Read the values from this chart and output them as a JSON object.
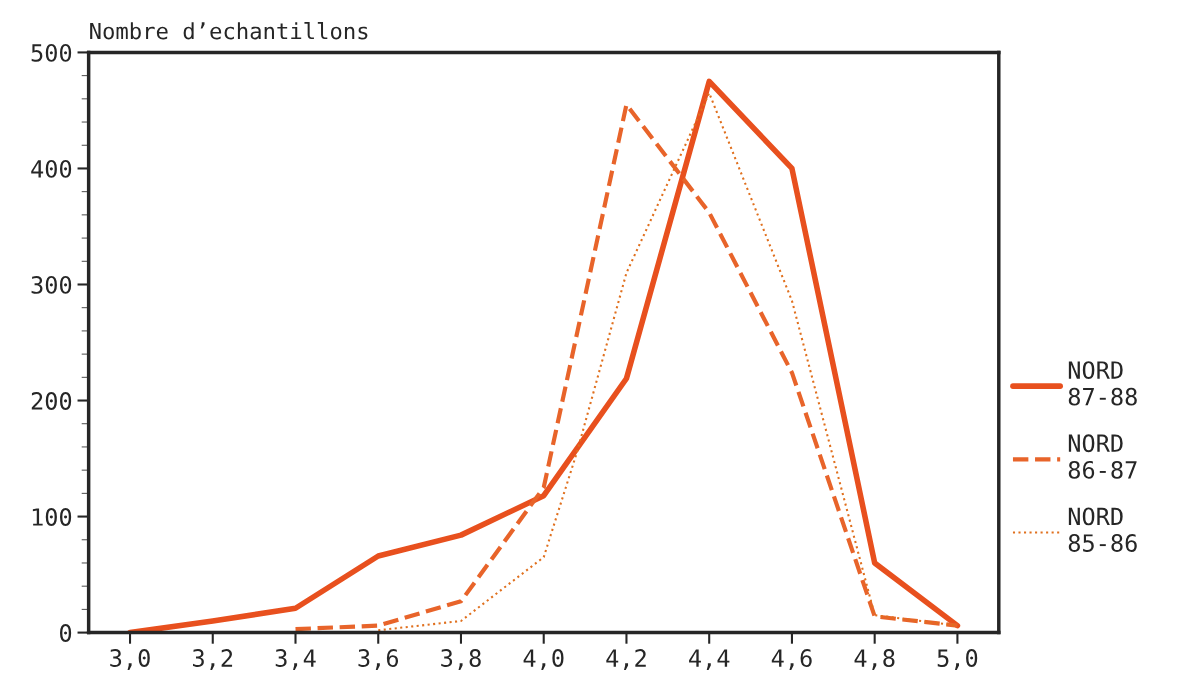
{
  "chart_data": {
    "type": "line",
    "ylabel": "Nombre d’echantillons",
    "x": [
      3.0,
      3.2,
      3.4,
      3.6,
      3.8,
      4.0,
      4.2,
      4.4,
      4.6,
      4.8,
      5.0
    ],
    "series": [
      {
        "name": "NORD\n87-88",
        "color": "#e8501e",
        "line_style": "solid",
        "values": [
          0,
          10,
          21,
          66,
          84,
          118,
          219,
          475,
          400,
          60,
          6
        ]
      },
      {
        "name": "NORD\n86-87",
        "color": "#e8642a",
        "line_style": "dashed",
        "x": [
          3.4,
          3.6,
          3.8,
          4.0,
          4.2,
          4.4,
          4.6,
          4.8,
          5.0
        ],
        "values": [
          3,
          6,
          27,
          125,
          455,
          362,
          224,
          14,
          6
        ]
      },
      {
        "name": "NORD\n85-86",
        "color": "#e0701e",
        "line_style": "dotted",
        "x": [
          3.6,
          3.8,
          4.0,
          4.08,
          4.2,
          4.4,
          4.6,
          4.8,
          5.0
        ],
        "values": [
          2,
          10,
          65,
          155,
          310,
          465,
          286,
          15,
          6
        ]
      }
    ],
    "xlim": [
      2.9,
      5.1
    ],
    "ylim": [
      0,
      500
    ],
    "xticks": [
      {
        "value": 3.0,
        "label": "3,0"
      },
      {
        "value": 3.2,
        "label": "3,2"
      },
      {
        "value": 3.4,
        "label": "3,4"
      },
      {
        "value": 3.6,
        "label": "3,6"
      },
      {
        "value": 3.8,
        "label": "3,8"
      },
      {
        "value": 4.0,
        "label": "4,0"
      },
      {
        "value": 4.2,
        "label": "4,2"
      },
      {
        "value": 4.4,
        "label": "4,4"
      },
      {
        "value": 4.6,
        "label": "4,6"
      },
      {
        "value": 4.8,
        "label": "4,8"
      },
      {
        "value": 5.0,
        "label": "5,0"
      }
    ],
    "yticks": [
      0,
      100,
      200,
      300,
      400,
      500
    ],
    "grid": false,
    "legend": "right"
  }
}
